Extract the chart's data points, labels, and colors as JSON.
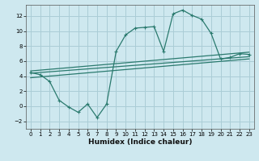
{
  "xlabel": "Humidex (Indice chaleur)",
  "xlim": [
    -0.5,
    23.5
  ],
  "ylim": [
    -3.0,
    13.5
  ],
  "yticks": [
    -2,
    0,
    2,
    4,
    6,
    8,
    10,
    12
  ],
  "xticks": [
    0,
    1,
    2,
    3,
    4,
    5,
    6,
    7,
    8,
    9,
    10,
    11,
    12,
    13,
    14,
    15,
    16,
    17,
    18,
    19,
    20,
    21,
    22,
    23
  ],
  "bg_color": "#cee8ef",
  "grid_color": "#aacdd6",
  "line_color": "#2a7a6e",
  "series": {
    "main": {
      "x": [
        0,
        1,
        2,
        3,
        4,
        5,
        6,
        7,
        8,
        9,
        10,
        11,
        12,
        13,
        14,
        15,
        16,
        17,
        18,
        19,
        20,
        21,
        22,
        23
      ],
      "y": [
        4.5,
        4.2,
        3.3,
        0.8,
        -0.1,
        -0.8,
        0.3,
        -1.5,
        0.3,
        7.3,
        9.5,
        10.4,
        10.5,
        10.6,
        7.3,
        12.3,
        12.8,
        12.1,
        11.6,
        9.7,
        6.3,
        6.5,
        7.0,
        6.9
      ]
    },
    "line1": {
      "x": [
        0,
        23
      ],
      "y": [
        4.7,
        7.2
      ]
    },
    "line2": {
      "x": [
        0,
        23
      ],
      "y": [
        4.4,
        6.6
      ]
    },
    "line3": {
      "x": [
        0,
        23
      ],
      "y": [
        3.8,
        6.3
      ]
    }
  }
}
